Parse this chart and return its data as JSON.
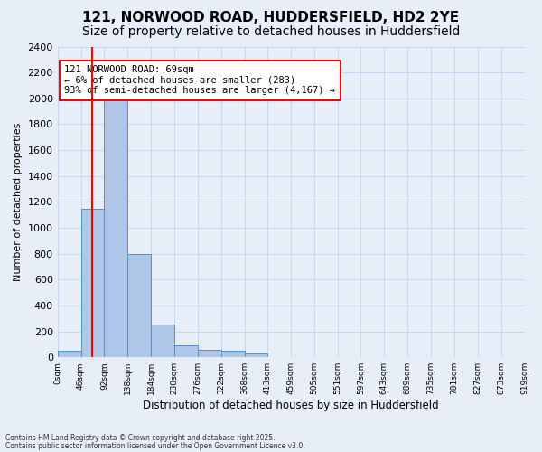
{
  "title_line1": "121, NORWOOD ROAD, HUDDERSFIELD, HD2 2YE",
  "title_line2": "Size of property relative to detached houses in Huddersfield",
  "xlabel": "Distribution of detached houses by size in Huddersfield",
  "ylabel": "Number of detached properties",
  "annotation_line1": "121 NORWOOD ROAD: 69sqm",
  "annotation_line2": "← 6% of detached houses are smaller (283)",
  "annotation_line3": "93% of semi-detached houses are larger (4,167) →",
  "footnote1": "Contains HM Land Registry data © Crown copyright and database right 2025.",
  "footnote2": "Contains public sector information licensed under the Open Government Licence v3.0.",
  "bin_edges": [
    0,
    46,
    92,
    138,
    184,
    230,
    276,
    322,
    368,
    413,
    459,
    505,
    551,
    597,
    643,
    689,
    735,
    781,
    827,
    873,
    919
  ],
  "bin_labels": [
    "0sqm",
    "46sqm",
    "92sqm",
    "138sqm",
    "184sqm",
    "230sqm",
    "276sqm",
    "322sqm",
    "368sqm",
    "413sqm",
    "459sqm",
    "505sqm",
    "551sqm",
    "597sqm",
    "643sqm",
    "689sqm",
    "735sqm",
    "781sqm",
    "827sqm",
    "873sqm",
    "919sqm"
  ],
  "bar_values": [
    50,
    1150,
    2050,
    800,
    255,
    90,
    60,
    50,
    30,
    0,
    0,
    0,
    0,
    0,
    0,
    0,
    0,
    0,
    0,
    0
  ],
  "bar_color": "#aec6e8",
  "bar_edge_color": "#5a8fc0",
  "vline_x": 69,
  "vline_color": "red",
  "annotation_box_color": "white",
  "annotation_box_edge": "red",
  "ylim": [
    0,
    2400
  ],
  "yticks": [
    0,
    200,
    400,
    600,
    800,
    1000,
    1200,
    1400,
    1600,
    1800,
    2000,
    2200,
    2400
  ],
  "background_color": "#e8eef8",
  "grid_color": "#c8d4f0",
  "title_fontsize": 11,
  "subtitle_fontsize": 10
}
